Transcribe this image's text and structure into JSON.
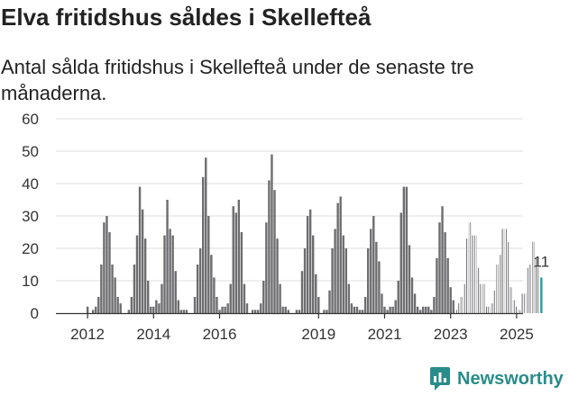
{
  "title": "Elva fritidshus såldes i Skellefteå",
  "subtitle": "Antal sålda fritidshus i Skellefteå under de senaste tre månaderna.",
  "brand": {
    "name": "Newsworthy",
    "color": "#2a8c8a"
  },
  "chart_data": {
    "type": "bar",
    "title": "Elva fritidshus såldes i Skellefteå",
    "xlabel": "",
    "ylabel": "",
    "ylim": [
      0,
      60
    ],
    "yticks": [
      0,
      10,
      20,
      30,
      40,
      50,
      60
    ],
    "x_start": "2011-07",
    "xtick_labels": [
      {
        "label": "2012",
        "index": 6
      },
      {
        "label": "2014",
        "index": 30
      },
      {
        "label": "2016",
        "index": 54
      },
      {
        "label": "2019",
        "index": 90
      },
      {
        "label": "2021",
        "index": 114
      },
      {
        "label": "2023",
        "index": 138
      },
      {
        "label": "2025",
        "index": 162
      }
    ],
    "hatched_from_index": 140,
    "annotation": {
      "text": "11",
      "index": 171
    },
    "bar_color": "#6d6d70",
    "highlight_color": "#2a9d9a",
    "values": [
      0,
      0,
      0,
      0,
      0,
      0,
      2,
      0,
      1,
      2,
      5,
      15,
      28,
      30,
      25,
      15,
      11,
      5,
      3,
      0,
      0,
      1,
      5,
      15,
      24,
      39,
      32,
      23,
      10,
      2,
      2,
      4,
      3,
      9,
      24,
      35,
      26,
      24,
      13,
      4,
      1,
      1,
      1,
      0,
      0,
      5,
      15,
      20,
      42,
      48,
      30,
      18,
      11,
      5,
      1,
      2,
      2,
      3,
      9,
      33,
      31,
      35,
      25,
      9,
      3,
      0,
      1,
      1,
      1,
      3,
      10,
      28,
      41,
      49,
      38,
      23,
      9,
      2,
      2,
      1,
      0,
      0,
      1,
      1,
      13,
      20,
      30,
      32,
      24,
      12,
      5,
      0,
      1,
      1,
      7,
      20,
      26,
      34,
      36,
      24,
      20,
      9,
      3,
      2,
      2,
      1,
      1,
      5,
      20,
      26,
      30,
      22,
      16,
      6,
      2,
      1,
      2,
      2,
      4,
      10,
      31,
      39,
      39,
      21,
      11,
      6,
      2,
      1,
      2,
      2,
      2,
      1,
      5,
      17,
      28,
      33,
      25,
      17,
      8,
      4,
      1,
      3,
      5,
      9,
      23,
      28,
      24,
      24,
      14,
      9,
      9,
      2,
      2,
      3,
      7,
      15,
      18,
      26,
      26,
      22,
      8,
      4,
      2,
      1,
      6,
      6,
      14,
      15,
      22,
      17,
      14,
      11
    ]
  }
}
